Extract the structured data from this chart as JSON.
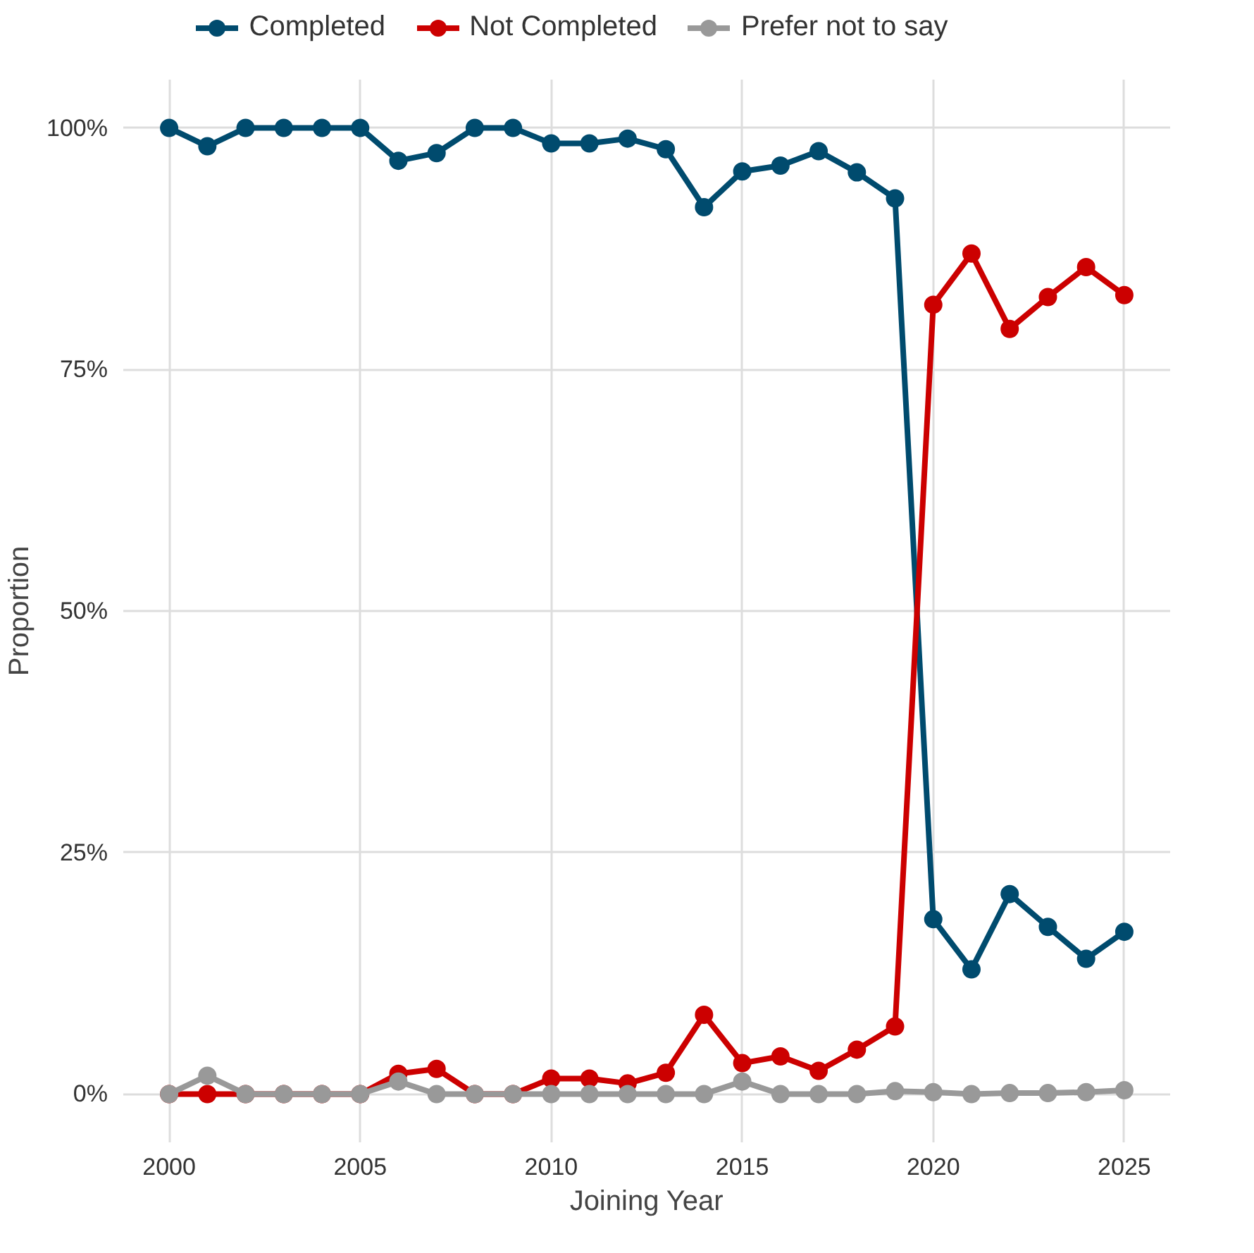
{
  "chart_data": {
    "type": "line",
    "xlabel": "Joining Year",
    "ylabel": "Proportion",
    "x": [
      2000,
      2001,
      2002,
      2003,
      2004,
      2005,
      2006,
      2007,
      2008,
      2009,
      2010,
      2011,
      2012,
      2013,
      2014,
      2015,
      2016,
      2017,
      2018,
      2019,
      2020,
      2021,
      2022,
      2023,
      2024,
      2025
    ],
    "series": [
      {
        "name": "Completed",
        "color": "#004b6e",
        "values": [
          100,
          98.1,
          100,
          100,
          100,
          100,
          96.6,
          97.4,
          100,
          100,
          98.4,
          98.4,
          98.9,
          97.8,
          91.8,
          95.5,
          96.1,
          97.6,
          95.4,
          92.7,
          18.1,
          12.9,
          20.7,
          17.3,
          14.0,
          16.8
        ]
      },
      {
        "name": "Not Completed",
        "color": "#cc0000",
        "values": [
          0,
          0,
          0,
          0,
          0,
          0,
          2.1,
          2.6,
          0,
          0,
          1.6,
          1.6,
          1.1,
          2.2,
          8.2,
          3.2,
          3.9,
          2.4,
          4.6,
          7.0,
          81.7,
          87.0,
          79.2,
          82.5,
          85.6,
          82.7
        ]
      },
      {
        "name": "Prefer not to say",
        "color": "#999999",
        "values": [
          0,
          1.9,
          0,
          0,
          0,
          0,
          1.3,
          0,
          0,
          0,
          0,
          0,
          0,
          0,
          0,
          1.3,
          0,
          0,
          0,
          0.3,
          0.2,
          0,
          0.1,
          0.1,
          0.2,
          0.4
        ]
      }
    ],
    "xlim": [
      1998.8,
      2026.2
    ],
    "ylim": [
      -5,
      105
    ],
    "xticks": [
      2000,
      2005,
      2010,
      2015,
      2020,
      2025
    ],
    "yticks": [
      {
        "value": 0,
        "label": "0%"
      },
      {
        "value": 25,
        "label": "25%"
      },
      {
        "value": 50,
        "label": "50%"
      },
      {
        "value": 75,
        "label": "75%"
      },
      {
        "value": 100,
        "label": "100%"
      }
    ],
    "grid": true,
    "legend": "top",
    "marker": "circle",
    "line_style": "solid"
  }
}
